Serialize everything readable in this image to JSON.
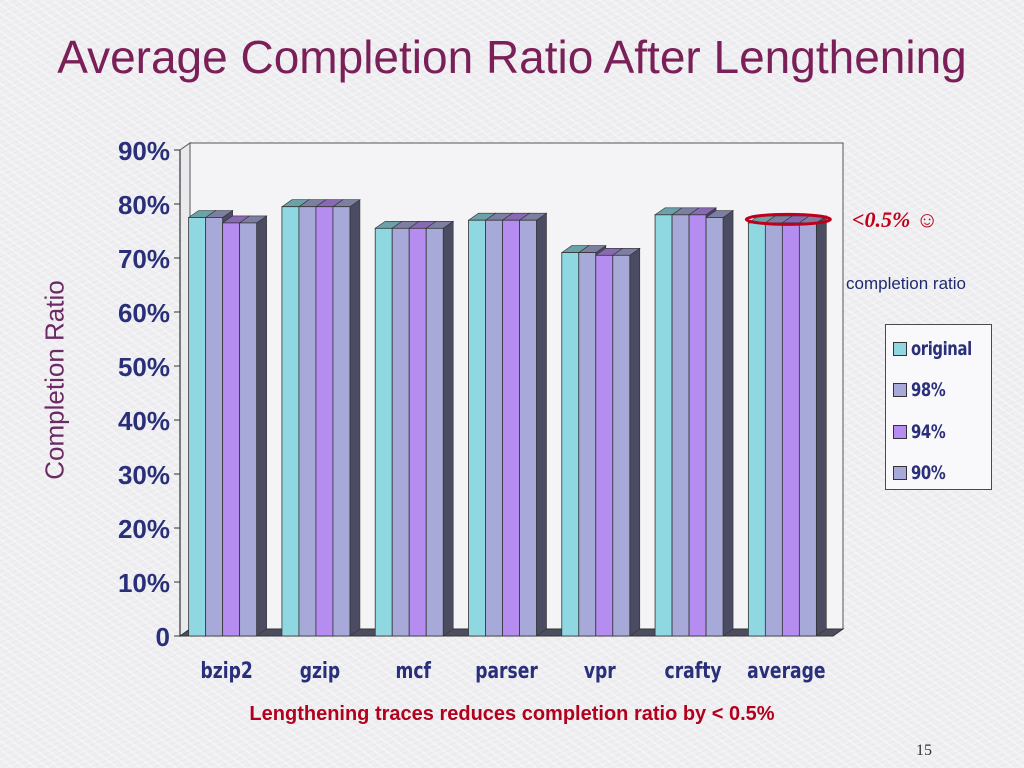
{
  "slide": {
    "title": "Average Completion Ratio After Lengthening",
    "bottom_note": "Lengthening traces reduces completion ratio by < 0.5%",
    "page_number": "15",
    "annotation": {
      "text": "<0.5%",
      "smiley": "☺",
      "subtext": "completion ratio",
      "color": "#c0001a"
    }
  },
  "chart_data": {
    "type": "bar",
    "ylabel": "Completion Ratio",
    "xlabel": "",
    "ylim": [
      0,
      90
    ],
    "yticks": [
      "0",
      "10%",
      "20%",
      "30%",
      "40%",
      "50%",
      "60%",
      "70%",
      "80%",
      "90%"
    ],
    "categories": [
      "bzip2",
      "gzip",
      "mcf",
      "parser",
      "vpr",
      "crafty",
      "average"
    ],
    "series": [
      {
        "name": "original",
        "color": "#8fd7e1",
        "values": [
          77.5,
          79.5,
          75.5,
          77,
          71,
          78,
          76.5
        ]
      },
      {
        "name": "98%",
        "color": "#a7a9d8",
        "values": [
          77.5,
          79.5,
          75.5,
          77,
          71,
          78,
          76.5
        ]
      },
      {
        "name": "94%",
        "color": "#b58cf0",
        "values": [
          76.5,
          79.5,
          75.5,
          77,
          70.5,
          78,
          76.5
        ]
      },
      {
        "name": "90%",
        "color": "#a7a9d8",
        "values": [
          76.5,
          79.5,
          75.5,
          77,
          70.5,
          77.5,
          76.5
        ]
      }
    ],
    "legend_position": "right",
    "grid": false
  }
}
